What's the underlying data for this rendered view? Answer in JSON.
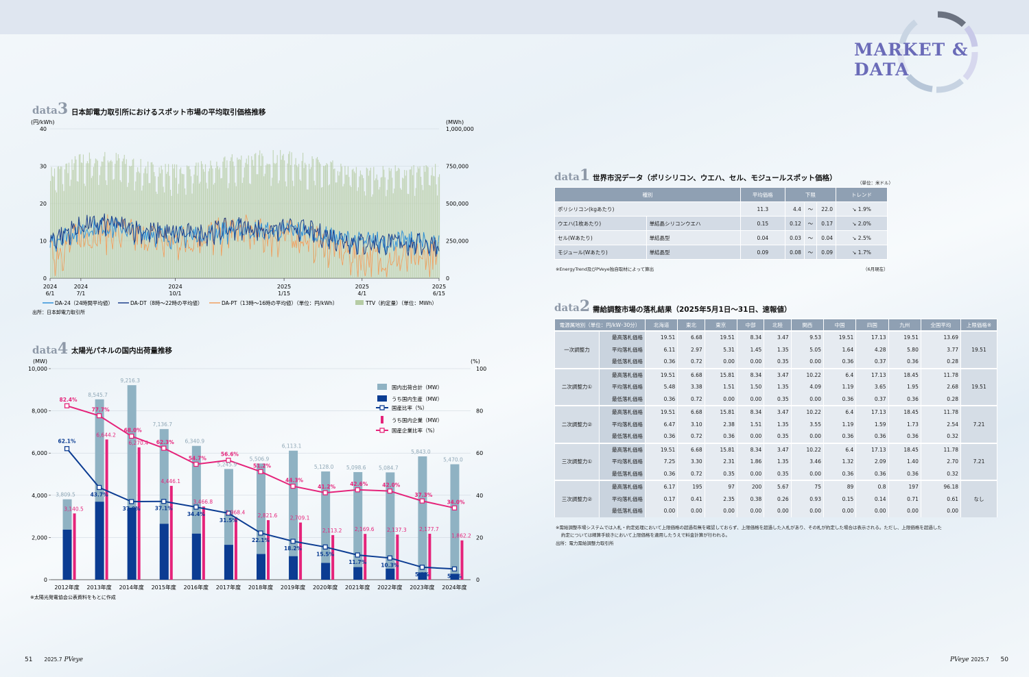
{
  "header": {
    "title": "MARKET & DATA"
  },
  "footer": {
    "left_page": "51",
    "left_issue": "2025.7",
    "left_brand": "PVeye",
    "right_brand": "PVeye",
    "right_issue": "2025.7",
    "right_page": "50"
  },
  "data3": {
    "tag": "data",
    "num": "3",
    "title": "日本卸電力取引所におけるスポット市場の平均取引価格推移",
    "source": "出所：日本卸電力取引所"
  },
  "data4": {
    "tag": "data",
    "num": "4",
    "title": "太陽光パネルの国内出荷量推移",
    "note": "※太陽光発電協会公表資料をもとに作成"
  },
  "data1": {
    "tag": "data",
    "num": "1",
    "title": "世界市況データ（ポリシリコン、ウエハ、セル、モジュールスポット価格）",
    "unit": "（単位：米ドル）",
    "headers": [
      "種別",
      "平均価格",
      "下限",
      "上限",
      "トレンド"
    ],
    "rows": [
      {
        "type": "ポリシリコン(kgあたり)",
        "sub": "",
        "avg": "11.3",
        "low": "4.4",
        "tilde": "～",
        "high": "22.0",
        "trend": "↘ 1.9%"
      },
      {
        "type": "ウエハ(1枚あたり)",
        "sub": "単結晶シリコンウエハ",
        "avg": "0.15",
        "low": "0.12",
        "tilde": "～",
        "high": "0.17",
        "trend": "↘ 2.0%"
      },
      {
        "type": "セル(Wあたり)",
        "sub": "単結晶型",
        "avg": "0.04",
        "low": "0.03",
        "tilde": "～",
        "high": "0.04",
        "trend": "↘ 2.5%"
      },
      {
        "type": "モジュール(Wあたり)",
        "sub": "単結晶型",
        "avg": "0.09",
        "low": "0.08",
        "tilde": "～",
        "high": "0.09",
        "trend": "↘ 1.7%"
      }
    ],
    "note": "※EnergyTrend及びPVeye独自取材によって算出",
    "date": "（6月現在）"
  },
  "data2": {
    "tag": "data",
    "num": "2",
    "title": "需給調整市場の落札結果（2025年5月1日～31日、速報値）",
    "headers": [
      "電源属地別（単位：円/kW･30分）",
      "北海道",
      "東北",
      "東京",
      "中部",
      "北陸",
      "関西",
      "中国",
      "四国",
      "九州",
      "全国平均",
      "上限価格※"
    ],
    "groups": [
      {
        "name": "一次調整力",
        "cap": "19.51",
        "rows": [
          [
            "最高落札価格",
            "19.51",
            "6.68",
            "19.51",
            "8.34",
            "3.47",
            "9.53",
            "19.51",
            "17.13",
            "19.51",
            "13.69"
          ],
          [
            "平均落札価格",
            "6.11",
            "2.97",
            "5.31",
            "1.45",
            "1.35",
            "5.05",
            "1.64",
            "4.28",
            "5.80",
            "3.77"
          ],
          [
            "最低落札価格",
            "0.36",
            "0.72",
            "0.00",
            "0.00",
            "0.35",
            "0.00",
            "0.36",
            "0.37",
            "0.36",
            "0.28"
          ]
        ]
      },
      {
        "name": "二次調整力①",
        "cap": "19.51",
        "rows": [
          [
            "最高落札価格",
            "19.51",
            "6.68",
            "15.81",
            "8.34",
            "3.47",
            "10.22",
            "6.4",
            "17.13",
            "18.45",
            "11.78"
          ],
          [
            "平均落札価格",
            "5.48",
            "3.38",
            "1.51",
            "1.50",
            "1.35",
            "4.09",
            "1.19",
            "3.65",
            "1.95",
            "2.68"
          ],
          [
            "最低落札価格",
            "0.36",
            "0.72",
            "0.00",
            "0.00",
            "0.35",
            "0.00",
            "0.36",
            "0.37",
            "0.36",
            "0.28"
          ]
        ]
      },
      {
        "name": "二次調整力②",
        "cap": "7.21",
        "rows": [
          [
            "最高落札価格",
            "19.51",
            "6.68",
            "15.81",
            "8.34",
            "3.47",
            "10.22",
            "6.4",
            "17.13",
            "18.45",
            "11.78"
          ],
          [
            "平均落札価格",
            "6.47",
            "3.10",
            "2.38",
            "1.51",
            "1.35",
            "3.55",
            "1.19",
            "1.59",
            "1.73",
            "2.54"
          ],
          [
            "最低落札価格",
            "0.36",
            "0.72",
            "0.36",
            "0.00",
            "0.35",
            "0.00",
            "0.36",
            "0.36",
            "0.36",
            "0.32"
          ]
        ]
      },
      {
        "name": "三次調整力①",
        "cap": "7.21",
        "rows": [
          [
            "最高落札価格",
            "19.51",
            "6.68",
            "15.81",
            "8.34",
            "3.47",
            "10.22",
            "6.4",
            "17.13",
            "18.45",
            "11.78"
          ],
          [
            "平均落札価格",
            "7.25",
            "3.30",
            "2.31",
            "1.86",
            "1.35",
            "3.46",
            "1.32",
            "2.09",
            "1.40",
            "2.70"
          ],
          [
            "最低落札価格",
            "0.36",
            "0.72",
            "0.35",
            "0.00",
            "0.35",
            "0.00",
            "0.36",
            "0.36",
            "0.36",
            "0.32"
          ]
        ]
      },
      {
        "name": "三次調整力②",
        "cap": "なし",
        "rows": [
          [
            "最高落札価格",
            "6.17",
            "195",
            "97",
            "200",
            "5.67",
            "75",
            "89",
            "0.8",
            "197",
            "96.18"
          ],
          [
            "平均落札価格",
            "0.17",
            "0.41",
            "2.35",
            "0.38",
            "0.26",
            "0.93",
            "0.15",
            "0.14",
            "0.71",
            "0.61"
          ],
          [
            "最低落札価格",
            "0.00",
            "0.00",
            "0.00",
            "0.00",
            "0.00",
            "0.00",
            "0.00",
            "0.00",
            "0.00",
            "0.00"
          ]
        ]
      }
    ],
    "note1": "※需給調整市場システムでは入札・約定処理において上限価格の超過有無を確認しておらず、上限価格を超過した入札があり、その札が約定した場合は表示される。ただし、上限価格を超過した",
    "note2": "約定については精算手続きにおいて上限価格を適用したうえで料金計算が行われる。",
    "source": "出所：電力需給調整力取引所"
  },
  "chart_data": [
    {
      "type": "line",
      "title": "日本卸電力取引所におけるスポット市場の平均取引価格推移",
      "left_unit": "(円/kWh)",
      "right_unit": "(MWh)",
      "y_left": {
        "ticks": [
          "0",
          "10",
          "20",
          "30",
          "40"
        ],
        "range": [
          0,
          40
        ]
      },
      "y_right": {
        "ticks": [
          "0",
          "250,000",
          "500,000",
          "750,000",
          "1,000,000"
        ],
        "range": [
          0,
          1000000
        ]
      },
      "x_ticks": [
        {
          "l1": "2024",
          "l2": "6/1"
        },
        {
          "l1": "2024",
          "l2": "7/1"
        },
        {
          "l1": "2024",
          "l2": "10/1"
        },
        {
          "l1": "2025",
          "l2": "1/15"
        },
        {
          "l1": "2025",
          "l2": "4/1"
        },
        {
          "l1": "2025",
          "l2": "6/15"
        }
      ],
      "x_range": [
        "2024-06-01",
        "2025-06-15"
      ],
      "legend": [
        "DA-24（24時間平均値）",
        "DA-DT（8時～22時の平均値）",
        "DA-PT（13時～16時の平均値）（単位：円/kWh）",
        "TTV（約定量）（単位：MWh）"
      ],
      "series": [
        {
          "name": "DA-24（24時間平均値）",
          "color": "#2f8fd8",
          "monthly_avg": [
            10.3,
            13.4,
            14.3,
            12.6,
            11.8,
            12.2,
            13.5,
            12.8,
            13.2,
            11.4,
            10.2,
            10.5,
            10.0
          ]
        },
        {
          "name": "DA-DT（8時～22時の平均値）",
          "color": "#1c3f8a",
          "monthly_avg": [
            10.8,
            14.5,
            15.2,
            13.1,
            12.3,
            12.7,
            14.3,
            13.5,
            13.9,
            11.6,
            9.8,
            10.0,
            9.6
          ]
        },
        {
          "name": "DA-PT（13時～16時の平均値）",
          "color": "#f0a060",
          "monthly_avg": [
            6.5,
            11.8,
            13.4,
            11.2,
            10.4,
            11.8,
            13.6,
            12.1,
            11.8,
            8.8,
            5.9,
            5.6,
            6.2
          ]
        },
        {
          "name": "TTV（約定量）",
          "color": "#b6cca4",
          "monthly_avg": [
            700000,
            790000,
            800000,
            740000,
            720000,
            740000,
            790000,
            810000,
            790000,
            740000,
            700000,
            710000,
            720000
          ]
        }
      ]
    },
    {
      "type": "bar",
      "title": "太陽光パネルの国内出荷量推移",
      "left_unit": "(MW)",
      "right_unit": "(%)",
      "y_left": {
        "ticks": [
          "0",
          "2,000",
          "4,000",
          "6,000",
          "8,000",
          "10,000"
        ],
        "range": [
          0,
          10000
        ]
      },
      "y_right": {
        "ticks": [
          "0",
          "20",
          "40",
          "60",
          "80",
          "100"
        ],
        "range": [
          0,
          100
        ]
      },
      "categories": [
        "2012年度",
        "2013年度",
        "2014年度",
        "2015年度",
        "2016年度",
        "2017年度",
        "2018年度",
        "2019年度",
        "2020年度",
        "2021年度",
        "2022年度",
        "2023年度",
        "2024年度"
      ],
      "legend": [
        "国内出荷合計（MW）",
        "うち国内生産（MW）",
        "国産比率（%）",
        "うち国内企業（MW）",
        "国産企業比率（%）"
      ],
      "series": [
        {
          "name": "国内出荷合計（MW）",
          "color": "#8fb2c3",
          "values": [
            3809.5,
            8545.7,
            9216.3,
            7136.7,
            6340.9,
            5245.9,
            5506.9,
            6113.1,
            5128.0,
            5098.6,
            5084.7,
            5843.0,
            5470.0
          ],
          "labels": [
            "3,809.5",
            "8,545.7",
            "9,216.3",
            "7,136.7",
            "6,340.9",
            "5,245.9",
            "5,506.9",
            "6,113.1",
            "5,128.0",
            "5,098.6",
            "5,084.7",
            "5,843.0",
            "5,470.0"
          ]
        },
        {
          "name": "うち国内生産（MW）",
          "color": "#0b3c92",
          "values": [
            2370,
            3694,
            3410,
            2648,
            2182,
            1652,
            1217,
            1113,
            795,
            597,
            524,
            345,
            279
          ]
        },
        {
          "name": "うち国内企業（MW）",
          "color": "#e5237a",
          "values": [
            3140.5,
            6644.2,
            6270.4,
            4446.1,
            3466.8,
            2968.4,
            2821.6,
            2709.1,
            2113.2,
            2169.6,
            2137.3,
            2177.7,
            1862.2
          ],
          "labels": [
            "3,140.5",
            "6,644.2",
            "6,270.4",
            "4,446.1",
            "3,466.8",
            "2,968.4",
            "2,821.6",
            "2,709.1",
            "2,113.2",
            "2,169.6",
            "2,137.3",
            "2,177.7",
            "1,862.2"
          ]
        },
        {
          "name": "国産比率（%）",
          "color": "#0b3c92",
          "values": [
            62.1,
            43.7,
            37.0,
            37.1,
            34.4,
            31.5,
            22.1,
            18.2,
            15.5,
            11.7,
            10.3,
            5.9,
            5.1
          ],
          "labels": [
            "62.1%",
            "43.7%",
            "37.0%",
            "37.1%",
            "34.4%",
            "31.5%",
            "22.1%",
            "18.2%",
            "15.5%",
            "11.7%",
            "10.3%",
            "5.9%",
            "5.1%"
          ]
        },
        {
          "name": "国産企業比率（%）",
          "color": "#e5237a",
          "values": [
            82.4,
            77.7,
            68.0,
            62.3,
            54.7,
            56.6,
            51.2,
            44.3,
            41.2,
            42.6,
            42.0,
            37.3,
            34.0
          ],
          "labels": [
            "82.4%",
            "77.7%",
            "68.0%",
            "62.3%",
            "54.7%",
            "56.6%",
            "51.2%",
            "44.3%",
            "41.2%",
            "42.6%",
            "42.0%",
            "37.3%",
            "34.0%"
          ]
        }
      ]
    }
  ]
}
